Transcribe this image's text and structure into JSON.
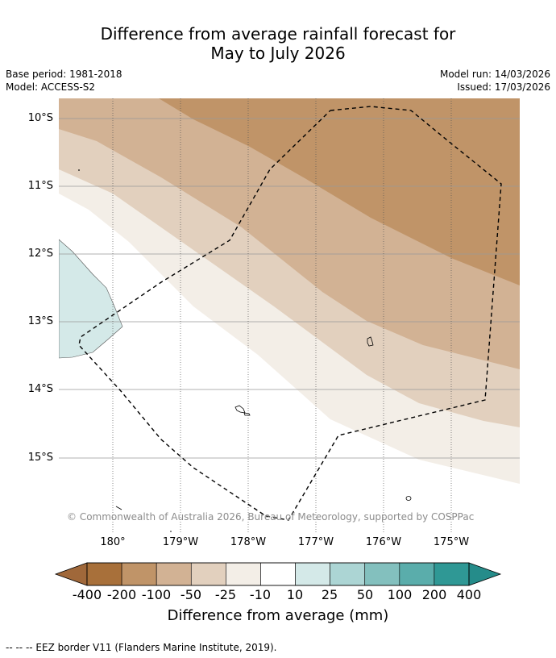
{
  "title_line1": "Difference from average rainfall forecast for",
  "title_line2": "May to July 2026",
  "meta": {
    "base_period": "Base period: 1981-2018",
    "model": "Model: ACCESS-S2",
    "model_run": "Model run: 14/03/2026",
    "issued": "Issued: 17/03/2026"
  },
  "lat_labels": [
    "10°S",
    "11°S",
    "12°S",
    "13°S",
    "14°S",
    "15°S"
  ],
  "lon_labels": [
    "180°",
    "179°W",
    "178°W",
    "177°W",
    "176°W",
    "175°W"
  ],
  "credit": "© Commonwealth of Australia 2026, Bureau of Meteorology, supported by COSPPac",
  "colorbar": {
    "labels": [
      "-400",
      "-200",
      "-100",
      "-50",
      "-25",
      "-10",
      "10",
      "25",
      "50",
      "100",
      "200",
      "400"
    ],
    "colors": [
      "#a8703a",
      "#c09468",
      "#d2b294",
      "#e2d0be",
      "#f3eee7",
      "#ffffff",
      "#d4e9e8",
      "#acd5d4",
      "#83c0be",
      "#5aadab",
      "#2f9895"
    ],
    "title": "Difference from average (mm)"
  },
  "footer": "--  --  -- EEZ border V11 (Flanders Marine Institute, 2019)."
}
